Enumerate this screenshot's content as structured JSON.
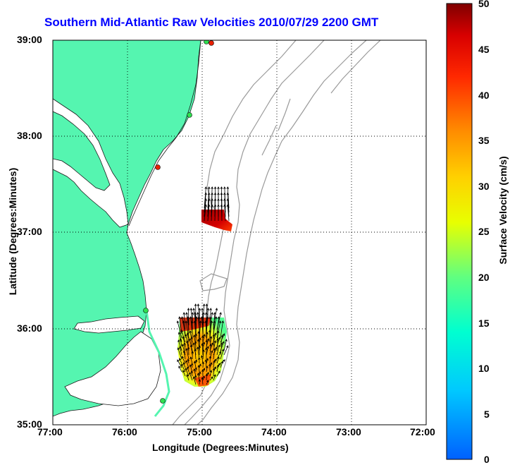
{
  "title": "Southern Mid-Atlantic Raw Velocities 2010/07/29 2200 GMT",
  "xlabel": "Longitude (Degrees:Minutes)",
  "ylabel": "Latitude (Degrees:Minutes)",
  "colorbar_label": "Surface Velocity (cm/s)",
  "x_ticks": [
    "77:00",
    "76:00",
    "75:00",
    "74:00",
    "73:00",
    "72:00"
  ],
  "y_ticks": [
    "39:00",
    "38:00",
    "37:00",
    "36:00",
    "35:00"
  ],
  "colorbar_ticks": [
    "50",
    "45",
    "40",
    "35",
    "30",
    "25",
    "20",
    "15",
    "10",
    "5",
    "0"
  ],
  "colors": {
    "land": "#55f5b0",
    "title": "#0000ff",
    "grid": "#000000",
    "bathymetry": "#9a9a9a"
  },
  "map_extent": {
    "lon_min": -77,
    "lon_max": -72,
    "lat_min": 35,
    "lat_max": 39
  },
  "grid": "dotted",
  "colormap": "jet",
  "colorbar_range": [
    0,
    50
  ]
}
